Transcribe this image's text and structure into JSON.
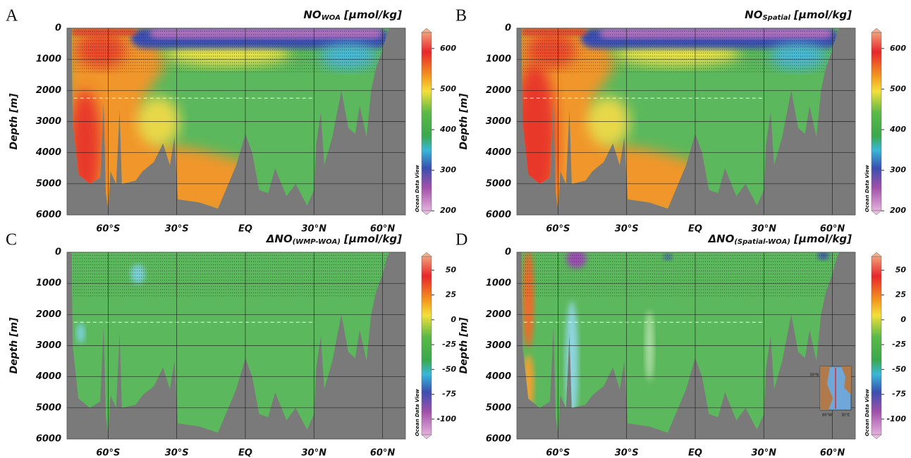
{
  "chart_data": [
    {
      "type": "section",
      "panel": "A",
      "title": {
        "main": "NO",
        "sub": "WOA",
        "unit": "[µmol/kg]"
      },
      "xlim": [
        -78,
        70
      ],
      "xticks": [
        {
          "value": -60,
          "label": "60°S"
        },
        {
          "value": -30,
          "label": "30°S"
        },
        {
          "value": 0,
          "label": "EQ"
        },
        {
          "value": 30,
          "label": "30°N"
        },
        {
          "value": 60,
          "label": "60°N"
        }
      ],
      "ylabel": "Depth [m]",
      "ylim": [
        6000,
        0
      ],
      "yticks": [
        0,
        1000,
        2000,
        3000,
        4000,
        5000,
        6000
      ],
      "colorbar": {
        "clim": [
          190,
          650
        ],
        "ticks": [
          200,
          300,
          400,
          500,
          600
        ]
      },
      "watermark": "Ocean Data View"
    },
    {
      "type": "section",
      "panel": "B",
      "title": {
        "main": "NO",
        "sub": "Spatial",
        "unit": "[µmol/kg]"
      },
      "xlim": [
        -78,
        70
      ],
      "xticks": [
        {
          "value": -60,
          "label": "60°S"
        },
        {
          "value": -30,
          "label": "30°S"
        },
        {
          "value": 0,
          "label": "EQ"
        },
        {
          "value": 30,
          "label": "30°N"
        },
        {
          "value": 60,
          "label": "60°N"
        }
      ],
      "ylabel": "Depth [m]",
      "ylim": [
        6000,
        0
      ],
      "yticks": [
        0,
        1000,
        2000,
        3000,
        4000,
        5000,
        6000
      ],
      "colorbar": {
        "clim": [
          190,
          650
        ],
        "ticks": [
          200,
          300,
          400,
          500,
          600
        ]
      },
      "watermark": "Ocean Data View"
    },
    {
      "type": "section",
      "panel": "C",
      "title": {
        "main": "ΔNO",
        "sub": "(WMP-WOA)",
        "unit": "[µmol/kg]"
      },
      "xlim": [
        -78,
        70
      ],
      "xticks": [
        {
          "value": -60,
          "label": "60°S"
        },
        {
          "value": -30,
          "label": "30°S"
        },
        {
          "value": 0,
          "label": "EQ"
        },
        {
          "value": 30,
          "label": "30°N"
        },
        {
          "value": 60,
          "label": "60°N"
        }
      ],
      "ylabel": "Depth [m]",
      "ylim": [
        6000,
        0
      ],
      "yticks": [
        0,
        1000,
        2000,
        3000,
        4000,
        5000,
        6000
      ],
      "colorbar": {
        "clim": [
          -120,
          68
        ],
        "ticks": [
          50,
          25,
          0,
          -25,
          -50,
          -75,
          -100
        ]
      },
      "watermark": "Ocean Data View"
    },
    {
      "type": "section",
      "panel": "D",
      "title": {
        "main": "ΔNO",
        "sub": "(Spatial-WOA)",
        "unit": "[µmol/kg]"
      },
      "xlim": [
        -78,
        70
      ],
      "xticks": [
        {
          "value": -60,
          "label": "60°S"
        },
        {
          "value": -30,
          "label": "30°S"
        },
        {
          "value": 0,
          "label": "EQ"
        },
        {
          "value": 30,
          "label": "30°N"
        },
        {
          "value": 60,
          "label": "60°N"
        }
      ],
      "ylabel": "Depth [m]",
      "ylim": [
        6000,
        0
      ],
      "yticks": [
        0,
        1000,
        2000,
        3000,
        4000,
        5000,
        6000
      ],
      "colorbar": {
        "clim": [
          -120,
          68
        ],
        "ticks": [
          50,
          25,
          0,
          -25,
          -50,
          -75,
          -100
        ]
      },
      "watermark": "Ocean Data View",
      "inset_labels": [
        "30°N",
        "60°W",
        "30°E"
      ]
    }
  ]
}
